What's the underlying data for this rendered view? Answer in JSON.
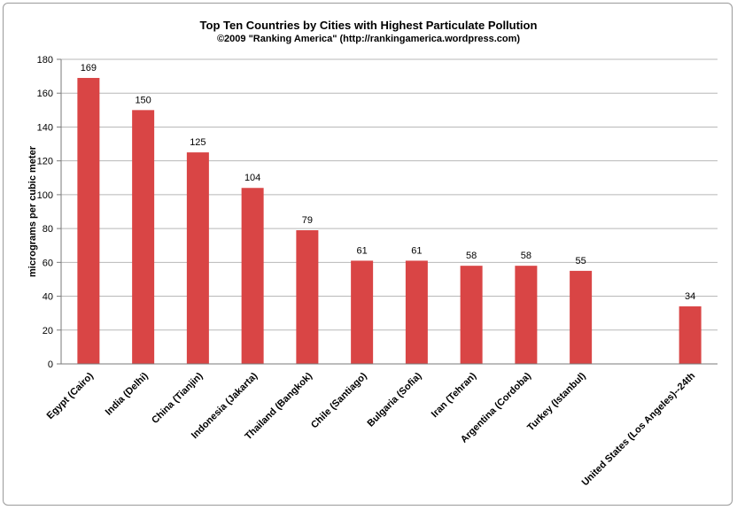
{
  "chart_data": {
    "type": "bar",
    "title": "Top Ten Countries by Cities with Highest Particulate Pollution",
    "subtitle": "©2009 \"Ranking America\" (http://rankingamerica.wordpress.com)",
    "ylabel": "micrograms per cubic meter",
    "xlabel": "",
    "ylim": [
      0,
      180
    ],
    "yticks": [
      0,
      20,
      40,
      60,
      80,
      100,
      120,
      140,
      160,
      180
    ],
    "categories": [
      "Egypt (Cairo)",
      "India (Delhi)",
      "China (Tianjin)",
      "Indonesia (Jakarta)",
      "Thailand (Bangkok)",
      "Chile (Santiago)",
      "Bulgaria (Sofia)",
      "Iran (Tehran)",
      "Argentina (Cordoba)",
      "Turkey (Istanbul)",
      "",
      "United States (Los Angeles)--24th"
    ],
    "values": [
      169,
      150,
      125,
      104,
      79,
      61,
      61,
      58,
      58,
      55,
      null,
      34
    ],
    "bar_color": "#d94545",
    "grid": true,
    "legend": "none"
  }
}
